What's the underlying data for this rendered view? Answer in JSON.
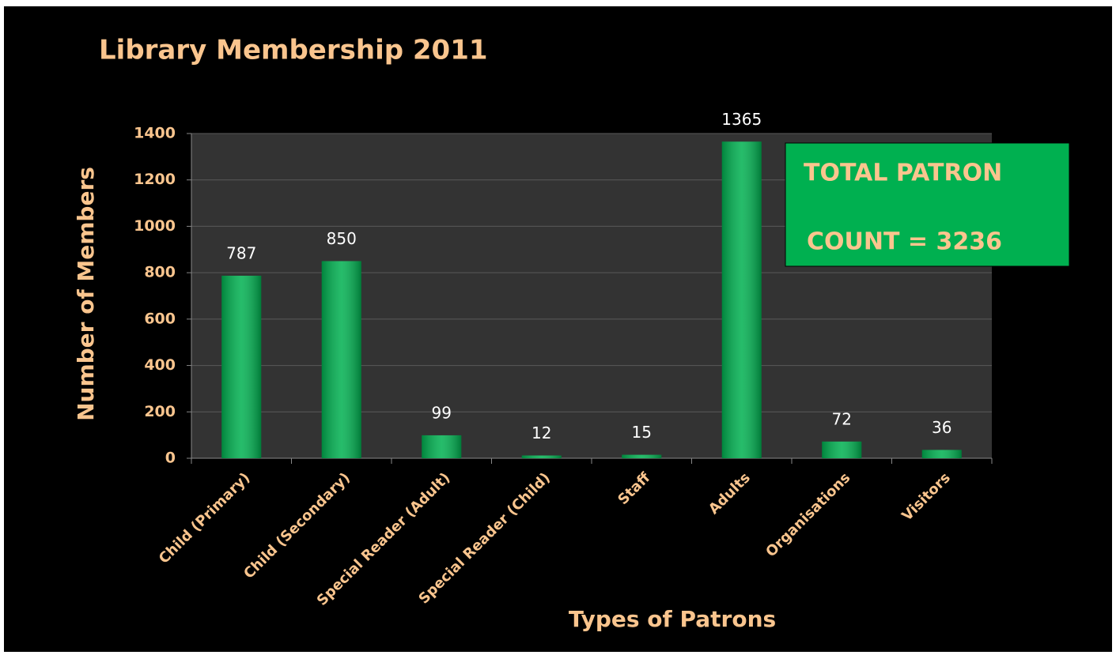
{
  "chart_data": {
    "type": "bar",
    "title": "Library Membership 2011",
    "x_label": "Types of Patrons",
    "y_label": "Number of  Members",
    "annotation": [
      "TOTAL PATRON",
      "COUNT = 3236"
    ],
    "categories": [
      "Child (Primary)",
      "Child (Secondary)",
      "Special Reader (Adult)",
      "Special Reader (Child)",
      "Staff",
      "Adults",
      "Organisations",
      "Visitors"
    ],
    "values": [
      787,
      850,
      99,
      12,
      15,
      1365,
      72,
      36
    ],
    "color": "#00b050",
    "ylim": [
      0,
      1400
    ],
    "yticks": [
      0,
      200,
      400,
      600,
      800,
      1000,
      1200,
      1400
    ],
    "grid": true
  }
}
